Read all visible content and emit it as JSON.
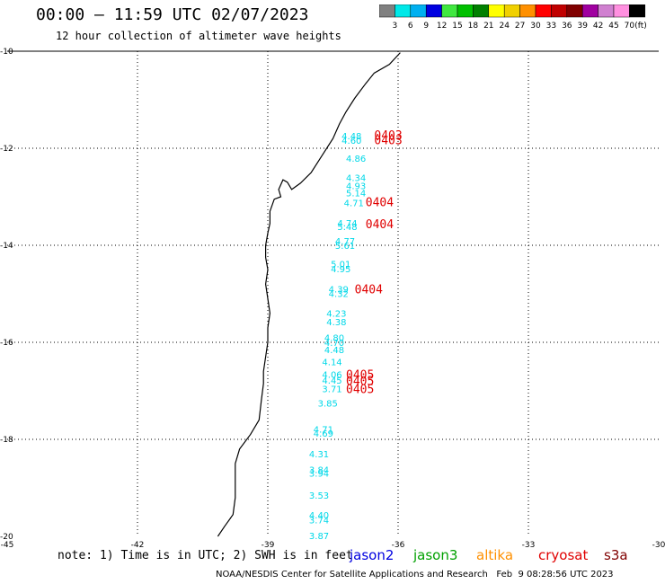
{
  "header": {
    "title": "00:00 – 11:59 UTC 02/07/2023",
    "subtitle": "12 hour collection of altimeter wave heights"
  },
  "colorbar": {
    "colors": [
      "#808080",
      "#00e8e8",
      "#00b0f0",
      "#0000e0",
      "#40e840",
      "#00c000",
      "#008000",
      "#ffff00",
      "#f0d000",
      "#ff9000",
      "#ff0000",
      "#c00000",
      "#800000",
      "#a000a0",
      "#d080d0",
      "#ff90e0",
      "#000000"
    ],
    "labels": [
      "3",
      "6",
      "9",
      "12",
      "15",
      "18",
      "21",
      "24",
      "27",
      "30",
      "33",
      "36",
      "39",
      "42",
      "45",
      "70"
    ],
    "unit": "(ft)"
  },
  "map": {
    "lon_range": [
      -45,
      -30
    ],
    "lat_range": [
      -20,
      -10
    ],
    "x_tick_labels": [
      "-45",
      "-42",
      "-39",
      "-36",
      "-33",
      "-30"
    ],
    "y_tick_labels": [
      "-10",
      "-12",
      "-14",
      "-16",
      "-18",
      "-20"
    ],
    "grid": "dotted"
  },
  "observations": [
    {
      "lon": -37.3,
      "lat": -11.74,
      "value": "4.48"
    },
    {
      "lon": -37.3,
      "lat": -11.83,
      "value": "4.60"
    },
    {
      "lon": -37.2,
      "lat": -12.2,
      "value": "4.86"
    },
    {
      "lon": -37.2,
      "lat": -12.6,
      "value": "4.34"
    },
    {
      "lon": -37.2,
      "lat": -12.77,
      "value": "4.93"
    },
    {
      "lon": -37.2,
      "lat": -12.92,
      "value": "5.14"
    },
    {
      "lon": -37.25,
      "lat": -13.12,
      "value": "4.71"
    },
    {
      "lon": -37.4,
      "lat": -13.54,
      "value": "4.74"
    },
    {
      "lon": -37.4,
      "lat": -13.61,
      "value": "5.48"
    },
    {
      "lon": -37.45,
      "lat": -13.91,
      "value": "4.77"
    },
    {
      "lon": -37.45,
      "lat": -14.0,
      "value": "5.61"
    },
    {
      "lon": -37.55,
      "lat": -14.38,
      "value": "5.01"
    },
    {
      "lon": -37.55,
      "lat": -14.48,
      "value": "4.95"
    },
    {
      "lon": -37.6,
      "lat": -14.9,
      "value": "4.39"
    },
    {
      "lon": -37.6,
      "lat": -14.99,
      "value": "4.32"
    },
    {
      "lon": -37.65,
      "lat": -15.4,
      "value": "4.23"
    },
    {
      "lon": -37.65,
      "lat": -15.57,
      "value": "4.38"
    },
    {
      "lon": -37.7,
      "lat": -15.9,
      "value": "4.80"
    },
    {
      "lon": -37.7,
      "lat": -16.0,
      "value": "4.70"
    },
    {
      "lon": -37.7,
      "lat": -16.15,
      "value": "4.48"
    },
    {
      "lon": -37.75,
      "lat": -16.4,
      "value": "4.14"
    },
    {
      "lon": -37.75,
      "lat": -16.66,
      "value": "4.06"
    },
    {
      "lon": -37.75,
      "lat": -16.78,
      "value": "4.45"
    },
    {
      "lon": -37.75,
      "lat": -16.95,
      "value": "3.71"
    },
    {
      "lon": -37.85,
      "lat": -17.25,
      "value": "3.85"
    },
    {
      "lon": -37.95,
      "lat": -17.79,
      "value": "4.71"
    },
    {
      "lon": -37.95,
      "lat": -17.87,
      "value": "4.69"
    },
    {
      "lon": -38.05,
      "lat": -18.3,
      "value": "4.31"
    },
    {
      "lon": -38.05,
      "lat": -18.62,
      "value": "3.84"
    },
    {
      "lon": -38.05,
      "lat": -18.69,
      "value": "3.94"
    },
    {
      "lon": -38.05,
      "lat": -19.15,
      "value": "3.53"
    },
    {
      "lon": -38.05,
      "lat": -19.56,
      "value": "4.40"
    },
    {
      "lon": -38.05,
      "lat": -19.66,
      "value": "3.74"
    },
    {
      "lon": -38.05,
      "lat": -19.98,
      "value": "3.87"
    }
  ],
  "pass_labels": [
    {
      "lon": -36.55,
      "lat": -11.72,
      "text": "0403"
    },
    {
      "lon": -36.55,
      "lat": -11.82,
      "text": "0403"
    },
    {
      "lon": -36.75,
      "lat": -13.1,
      "text": "0404"
    },
    {
      "lon": -36.75,
      "lat": -13.56,
      "text": "0404"
    },
    {
      "lon": -37.0,
      "lat": -14.9,
      "text": "0404"
    },
    {
      "lon": -37.2,
      "lat": -16.66,
      "text": "0405"
    },
    {
      "lon": -37.2,
      "lat": -16.79,
      "text": "0405"
    },
    {
      "lon": -37.2,
      "lat": -16.95,
      "text": "0405"
    }
  ],
  "coastline": [
    [
      -35.95,
      -10.03
    ],
    [
      -36.2,
      -10.27
    ],
    [
      -36.55,
      -10.45
    ],
    [
      -36.75,
      -10.67
    ],
    [
      -37.0,
      -10.97
    ],
    [
      -37.2,
      -11.25
    ],
    [
      -37.35,
      -11.5
    ],
    [
      -37.5,
      -11.8
    ],
    [
      -37.75,
      -12.15
    ],
    [
      -38.0,
      -12.5
    ],
    [
      -38.25,
      -12.72
    ],
    [
      -38.45,
      -12.85
    ],
    [
      -38.55,
      -12.7
    ],
    [
      -38.65,
      -12.65
    ],
    [
      -38.75,
      -12.85
    ],
    [
      -38.7,
      -13.0
    ],
    [
      -38.85,
      -13.05
    ],
    [
      -38.95,
      -13.3
    ],
    [
      -38.95,
      -13.55
    ],
    [
      -39.0,
      -13.75
    ],
    [
      -39.05,
      -14.0
    ],
    [
      -39.05,
      -14.25
    ],
    [
      -39.0,
      -14.5
    ],
    [
      -39.05,
      -14.8
    ],
    [
      -39.0,
      -15.1
    ],
    [
      -38.95,
      -15.4
    ],
    [
      -39.0,
      -15.7
    ],
    [
      -39.0,
      -16.0
    ],
    [
      -39.05,
      -16.3
    ],
    [
      -39.1,
      -16.6
    ],
    [
      -39.1,
      -16.85
    ],
    [
      -39.15,
      -17.2
    ],
    [
      -39.2,
      -17.6
    ],
    [
      -39.4,
      -17.9
    ],
    [
      -39.65,
      -18.2
    ],
    [
      -39.75,
      -18.5
    ],
    [
      -39.75,
      -18.85
    ],
    [
      -39.75,
      -19.2
    ],
    [
      -39.8,
      -19.55
    ],
    [
      -40.0,
      -19.8
    ],
    [
      -40.15,
      -20.0
    ]
  ],
  "note_text": "note: 1) Time is in UTC; 2) SWH is in feet",
  "satellites": [
    {
      "name": "jason2",
      "color": "#0000e0"
    },
    {
      "name": "jason3",
      "color": "#00a000"
    },
    {
      "name": "altika",
      "color": "#ff9000"
    },
    {
      "name": "cryosat",
      "color": "#e00000"
    },
    {
      "name": "s3a",
      "color": "#800000"
    }
  ],
  "footer_text": "NOAA/NESDIS Center for Satellite Applications and Research   Feb  9 08:28:56 UTC 2023"
}
